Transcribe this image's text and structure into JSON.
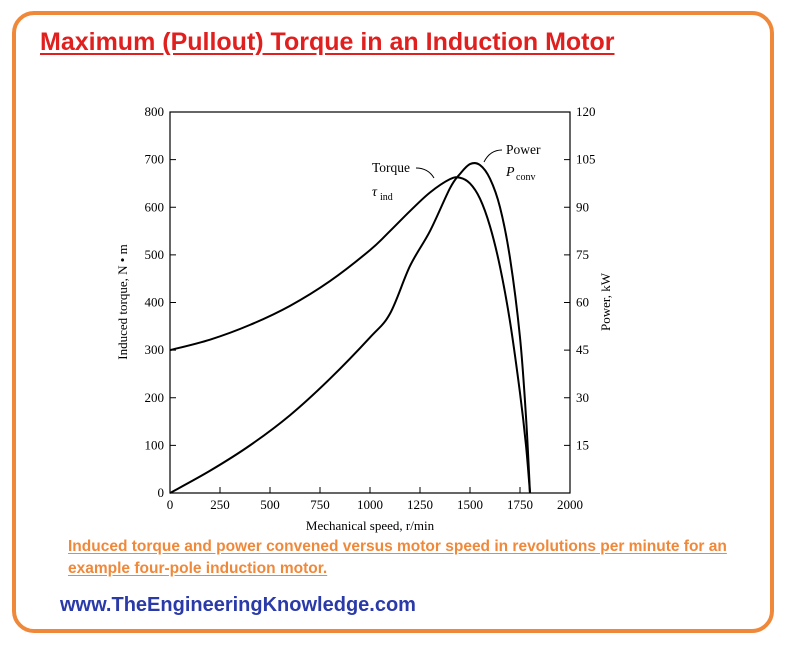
{
  "header": {
    "title": "Maximum (Pullout) Torque in an Induction Motor"
  },
  "caption": "Induced torque and power convened versus motor speed in revolutions per minute for an example four-pole induction motor.",
  "website": "www.TheEngineeringKnowledge.com",
  "colors": {
    "frame": "#f0883a",
    "title": "#e0201f",
    "caption": "#f0883a",
    "website": "#2a3aa8",
    "curve": "#000000"
  },
  "chart_data": {
    "type": "line",
    "xlabel": "Mechanical speed, r/min",
    "ylabel_left": "Induced torque, N • m",
    "ylabel_right": "Power, kW",
    "xlim": [
      0,
      2000
    ],
    "ylim_left": [
      0,
      800
    ],
    "ylim_right": [
      0,
      120
    ],
    "x_ticks": [
      "0",
      "250",
      "500",
      "750",
      "1000",
      "1250",
      "1500",
      "1750",
      "2000"
    ],
    "y_left_ticks": [
      "0",
      "100",
      "200",
      "300",
      "400",
      "500",
      "600",
      "700",
      "800"
    ],
    "y_right_ticks": [
      "15",
      "30",
      "45",
      "60",
      "75",
      "90",
      "105",
      "120"
    ],
    "grid": false,
    "series": [
      {
        "name": "Torque",
        "symbol": "τ",
        "subscript": "ind",
        "axis": "left",
        "x": [
          0,
          200,
          400,
          600,
          800,
          1000,
          1100,
          1200,
          1300,
          1400,
          1450,
          1500,
          1550,
          1600,
          1650,
          1700,
          1750,
          1780,
          1800
        ],
        "y": [
          300,
          322,
          353,
          393,
          445,
          510,
          550,
          592,
          631,
          659,
          662,
          650,
          618,
          560,
          475,
          360,
          210,
          100,
          0
        ]
      },
      {
        "name": "Power",
        "symbol": "P",
        "subscript": "conv",
        "axis": "right",
        "x": [
          0,
          200,
          400,
          600,
          800,
          1000,
          1100,
          1200,
          1300,
          1400,
          1450,
          1500,
          1550,
          1600,
          1650,
          1700,
          1750,
          1780,
          1800
        ],
        "y": [
          0,
          7,
          15,
          24.5,
          36,
          49,
          56.5,
          71.5,
          82.5,
          96,
          100.5,
          103.6,
          103.3,
          99,
          90,
          74,
          49,
          24,
          0
        ]
      }
    ]
  }
}
